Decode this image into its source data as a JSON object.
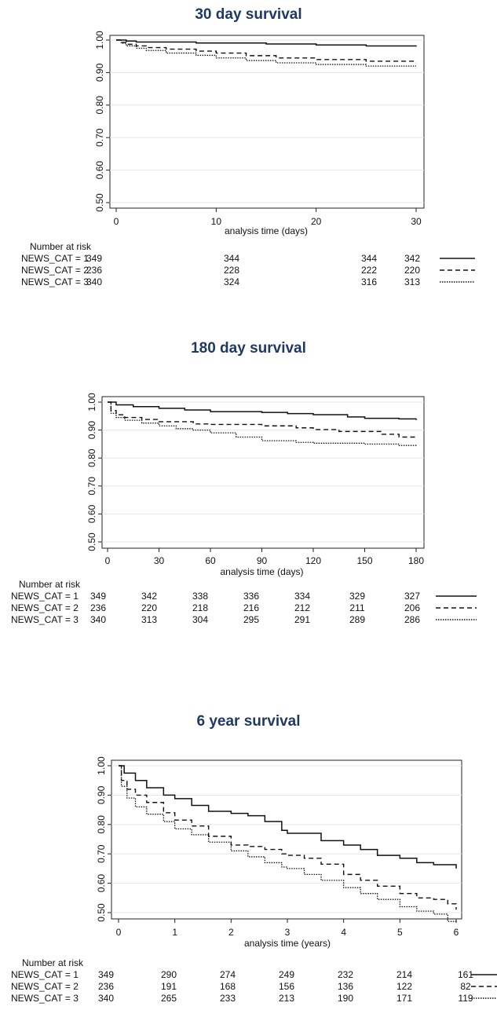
{
  "chart_data": [
    {
      "type": "line",
      "title": "30 day survival",
      "xlabel": "analysis time (days)",
      "ylabel": "",
      "xlim": [
        0,
        30
      ],
      "ylim": [
        0.5,
        1.0
      ],
      "xticks": [
        0,
        10,
        20,
        30
      ],
      "yticks": [
        0.5,
        0.6,
        0.7,
        0.8,
        0.9,
        1.0
      ],
      "ytick_labels": [
        "0.50",
        "0.60",
        "0.70",
        "0.80",
        "0.90",
        "1.00"
      ],
      "grid": true,
      "series": [
        {
          "style": "solid",
          "x": [
            0,
            1,
            2,
            8,
            15,
            20,
            25,
            30
          ],
          "y": [
            1.0,
            0.997,
            0.994,
            0.991,
            0.988,
            0.985,
            0.982,
            0.98
          ]
        },
        {
          "style": "dashed",
          "x": [
            0,
            0.5,
            1,
            2,
            3,
            5,
            8,
            10,
            13,
            16,
            20,
            25,
            30
          ],
          "y": [
            1.0,
            0.993,
            0.987,
            0.982,
            0.977,
            0.972,
            0.966,
            0.96,
            0.952,
            0.945,
            0.94,
            0.935,
            0.932
          ]
        },
        {
          "style": "dotted",
          "x": [
            0,
            0.5,
            1,
            2,
            3,
            5,
            8,
            10,
            13,
            16,
            20,
            25,
            30
          ],
          "y": [
            1.0,
            0.99,
            0.982,
            0.975,
            0.968,
            0.96,
            0.953,
            0.945,
            0.937,
            0.93,
            0.925,
            0.92,
            0.92
          ]
        }
      ],
      "risk_table": {
        "header": "Number at risk",
        "rows": [
          {
            "label": "NEWS_CAT = 1",
            "values": [
              "349",
              "344",
              "344",
              "342"
            ],
            "style": "solid"
          },
          {
            "label": "NEWS_CAT = 2",
            "values": [
              "236",
              "228",
              "222",
              "220"
            ],
            "style": "dashed"
          },
          {
            "label": "NEWS_CAT = 3",
            "values": [
              "340",
              "324",
              "316",
              "313"
            ],
            "style": "dotted"
          }
        ]
      }
    },
    {
      "type": "line",
      "title": "180 day survival",
      "xlabel": "analysis time (days)",
      "ylabel": "",
      "xlim": [
        0,
        180
      ],
      "ylim": [
        0.5,
        1.0
      ],
      "xticks": [
        0,
        30,
        60,
        90,
        120,
        150,
        180
      ],
      "yticks": [
        0.5,
        0.6,
        0.7,
        0.8,
        0.9,
        1.0
      ],
      "ytick_labels": [
        "0.50",
        "0.60",
        "0.70",
        "0.80",
        "0.90",
        "1.00"
      ],
      "grid": true,
      "series": [
        {
          "style": "solid",
          "x": [
            0,
            5,
            15,
            30,
            45,
            60,
            90,
            105,
            120,
            140,
            150,
            170,
            180
          ],
          "y": [
            1.0,
            0.99,
            0.984,
            0.978,
            0.972,
            0.966,
            0.963,
            0.959,
            0.955,
            0.947,
            0.942,
            0.94,
            0.936
          ]
        },
        {
          "style": "dashed",
          "x": [
            0,
            2,
            5,
            10,
            20,
            30,
            50,
            60,
            90,
            110,
            120,
            135,
            150,
            160,
            170,
            180
          ],
          "y": [
            1.0,
            0.97,
            0.955,
            0.945,
            0.938,
            0.93,
            0.922,
            0.92,
            0.915,
            0.908,
            0.902,
            0.895,
            0.895,
            0.885,
            0.875,
            0.868
          ]
        },
        {
          "style": "dotted",
          "x": [
            0,
            2,
            5,
            10,
            20,
            30,
            40,
            50,
            60,
            75,
            90,
            110,
            120,
            150,
            170,
            180
          ],
          "y": [
            1.0,
            0.96,
            0.945,
            0.935,
            0.925,
            0.915,
            0.905,
            0.9,
            0.89,
            0.875,
            0.862,
            0.856,
            0.853,
            0.85,
            0.845,
            0.84
          ]
        }
      ],
      "risk_table": {
        "header": "Number at risk",
        "rows": [
          {
            "label": "NEWS_CAT = 1",
            "values": [
              "349",
              "342",
              "338",
              "336",
              "334",
              "329",
              "327"
            ],
            "style": "solid"
          },
          {
            "label": "NEWS_CAT = 2",
            "values": [
              "236",
              "220",
              "218",
              "216",
              "212",
              "211",
              "206"
            ],
            "style": "dashed"
          },
          {
            "label": "NEWS_CAT = 3",
            "values": [
              "340",
              "313",
              "304",
              "295",
              "291",
              "289",
              "286"
            ],
            "style": "dotted"
          }
        ]
      }
    },
    {
      "type": "line",
      "title": "6 year survival",
      "xlabel": "analysis time (years)",
      "ylabel": "",
      "xlim": [
        0,
        6
      ],
      "ylim": [
        0.5,
        1.0
      ],
      "xticks": [
        0,
        1,
        2,
        3,
        4,
        5,
        6
      ],
      "yticks": [
        0.5,
        0.6,
        0.7,
        0.8,
        0.9,
        1.0
      ],
      "ytick_labels": [
        "0.50",
        "0.60",
        "0.70",
        "0.80",
        "0.90",
        "1.00"
      ],
      "grid": true,
      "series": [
        {
          "style": "solid",
          "x": [
            0,
            0.1,
            0.3,
            0.5,
            0.8,
            1.0,
            1.3,
            1.6,
            2.0,
            2.3,
            2.6,
            2.9,
            3.0,
            3.3,
            3.6,
            4.0,
            4.3,
            4.6,
            5.0,
            5.3,
            5.6,
            6.0
          ],
          "y": [
            1.0,
            0.975,
            0.95,
            0.925,
            0.9,
            0.888,
            0.865,
            0.845,
            0.838,
            0.83,
            0.81,
            0.78,
            0.77,
            0.77,
            0.745,
            0.73,
            0.715,
            0.695,
            0.685,
            0.67,
            0.663,
            0.65
          ]
        },
        {
          "style": "dashed",
          "x": [
            0,
            0.05,
            0.15,
            0.3,
            0.5,
            0.8,
            1.0,
            1.3,
            1.6,
            2.0,
            2.3,
            2.6,
            2.9,
            3.0,
            3.3,
            3.6,
            4.0,
            4.3,
            4.6,
            5.0,
            5.3,
            5.6,
            5.85,
            6.0
          ],
          "y": [
            1.0,
            0.95,
            0.92,
            0.9,
            0.875,
            0.84,
            0.815,
            0.795,
            0.76,
            0.73,
            0.725,
            0.715,
            0.7,
            0.695,
            0.685,
            0.665,
            0.63,
            0.61,
            0.59,
            0.565,
            0.55,
            0.545,
            0.53,
            0.51
          ]
        },
        {
          "style": "dotted",
          "x": [
            0,
            0.05,
            0.15,
            0.3,
            0.5,
            0.8,
            1.0,
            1.3,
            1.6,
            2.0,
            2.3,
            2.6,
            2.9,
            3.0,
            3.3,
            3.6,
            4.0,
            4.3,
            4.6,
            5.0,
            5.3,
            5.6,
            5.85,
            6.0
          ],
          "y": [
            1.0,
            0.93,
            0.89,
            0.86,
            0.835,
            0.81,
            0.785,
            0.765,
            0.74,
            0.71,
            0.69,
            0.67,
            0.655,
            0.65,
            0.63,
            0.61,
            0.585,
            0.565,
            0.545,
            0.52,
            0.505,
            0.495,
            0.47,
            0.465
          ]
        }
      ],
      "risk_table": {
        "header": "Number at risk",
        "rows": [
          {
            "label": "NEWS_CAT = 1",
            "values": [
              "349",
              "290",
              "274",
              "249",
              "232",
              "214",
              "161"
            ],
            "style": "solid"
          },
          {
            "label": "NEWS_CAT = 2",
            "values": [
              "236",
              "191",
              "168",
              "156",
              "136",
              "122",
              "82"
            ],
            "style": "dashed"
          },
          {
            "label": "NEWS_CAT = 3",
            "values": [
              "340",
              "265",
              "233",
              "213",
              "190",
              "171",
              "119"
            ],
            "style": "dotted"
          }
        ]
      }
    }
  ]
}
